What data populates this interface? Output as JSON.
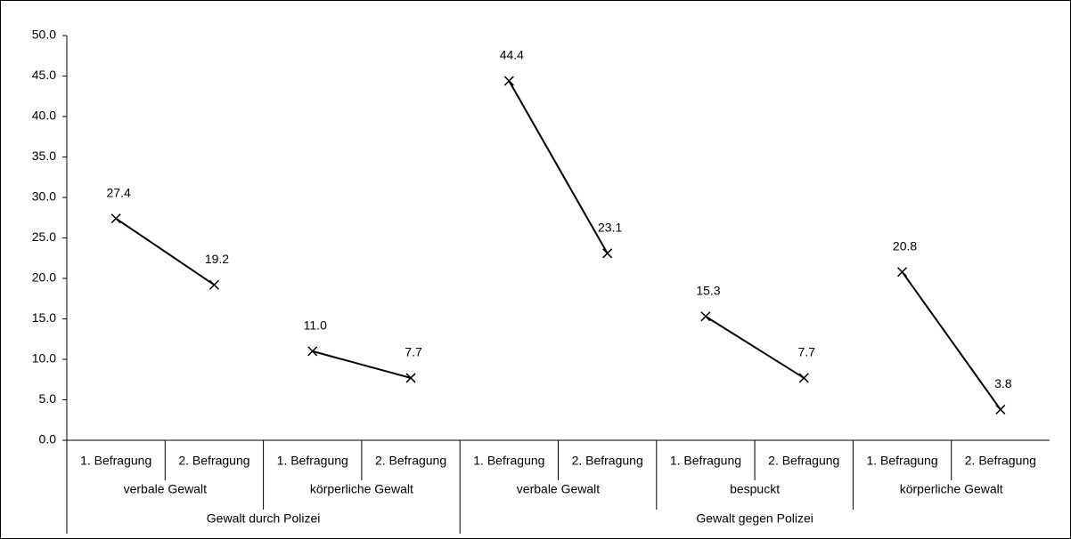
{
  "chart_data": {
    "type": "line",
    "color": "#000000",
    "ylim": [
      0,
      50
    ],
    "yticks": [
      {
        "value": 0,
        "label": "0.0"
      },
      {
        "value": 5,
        "label": "5.0"
      },
      {
        "value": 10,
        "label": "10.0"
      },
      {
        "value": 15,
        "label": "15.0"
      },
      {
        "value": 20,
        "label": "20.0"
      },
      {
        "value": 25,
        "label": "25.0"
      },
      {
        "value": 30,
        "label": "30.0"
      },
      {
        "value": 35,
        "label": "35.0"
      },
      {
        "value": 40,
        "label": "40.0"
      },
      {
        "value": 45,
        "label": "45.0"
      },
      {
        "value": 50,
        "label": "50.0"
      }
    ],
    "groups": [
      {
        "name": "Gewalt durch Polizei",
        "subgroups": [
          {
            "name": "verbale Gewalt",
            "categories": [
              "1. Befragung",
              "2. Befragung"
            ],
            "values": [
              27.4,
              19.2
            ],
            "value_labels": [
              "27.4",
              "19.2"
            ]
          },
          {
            "name": "körperliche Gewalt",
            "categories": [
              "1. Befragung",
              "2. Befragung"
            ],
            "values": [
              11.0,
              7.7
            ],
            "value_labels": [
              "11.0",
              "7.7"
            ]
          }
        ]
      },
      {
        "name": "Gewalt gegen Polizei",
        "subgroups": [
          {
            "name": "verbale Gewalt",
            "categories": [
              "1. Befragung",
              "2. Befragung"
            ],
            "values": [
              44.4,
              23.1
            ],
            "value_labels": [
              "44.4",
              "23.1"
            ]
          },
          {
            "name": "bespuckt",
            "categories": [
              "1. Befragung",
              "2. Befragung"
            ],
            "values": [
              15.3,
              7.7
            ],
            "value_labels": [
              "15.3",
              "7.7"
            ]
          },
          {
            "name": "körperliche Gewalt",
            "categories": [
              "1. Befragung",
              "2. Befragung"
            ],
            "values": [
              20.8,
              3.8
            ],
            "value_labels": [
              "20.8",
              "3.8"
            ]
          }
        ]
      }
    ]
  }
}
